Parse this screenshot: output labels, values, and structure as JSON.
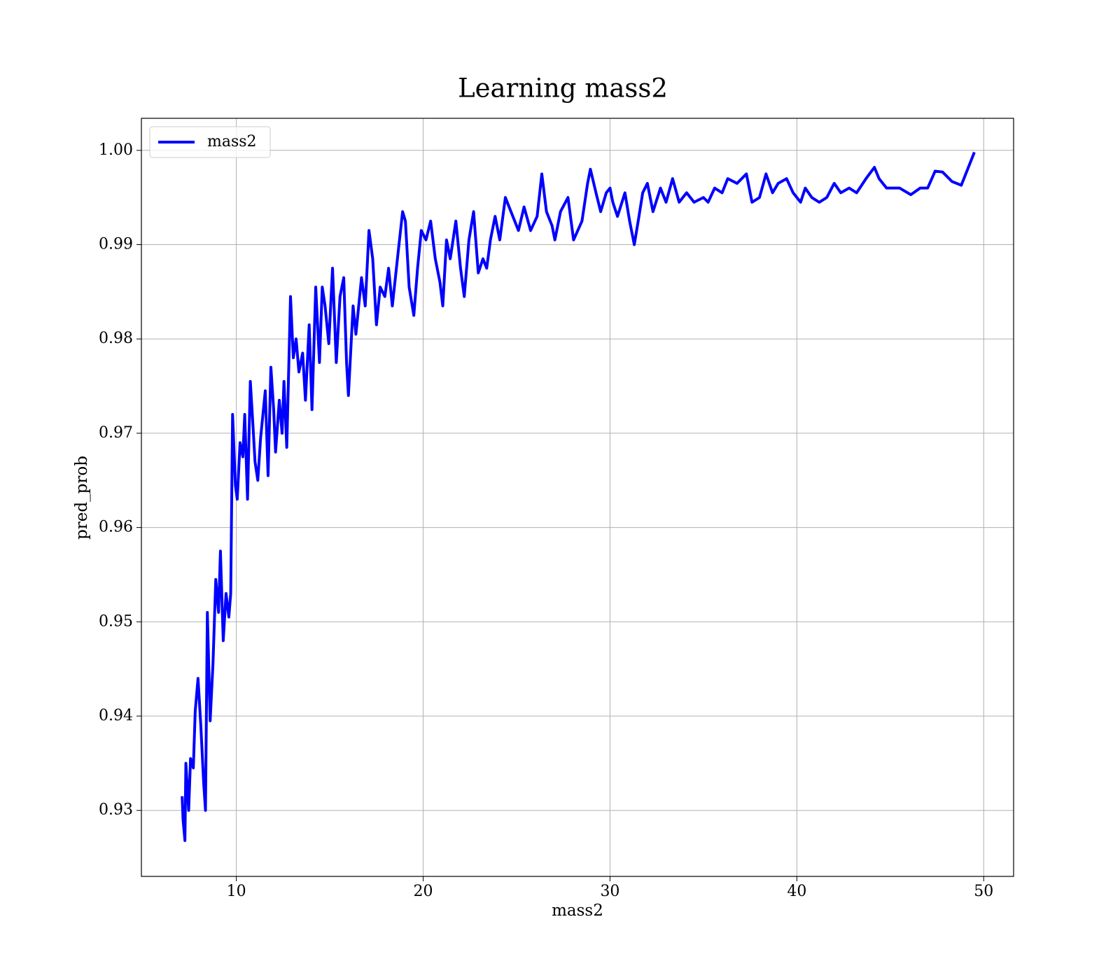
{
  "chart_data": {
    "type": "line",
    "title": "Learning mass2",
    "xlabel": "mass2",
    "ylabel": "pred_prob",
    "x": [
      7.1,
      7.15,
      7.25,
      7.3,
      7.45,
      7.55,
      7.7,
      7.8,
      7.95,
      8.1,
      8.25,
      8.35,
      8.45,
      8.6,
      8.75,
      8.9,
      9.05,
      9.15,
      9.3,
      9.45,
      9.6,
      9.7,
      9.8,
      9.95,
      10.05,
      10.2,
      10.35,
      10.45,
      10.6,
      10.75,
      10.9,
      11.0,
      11.15,
      11.3,
      11.55,
      11.7,
      11.85,
      12.0,
      12.1,
      12.3,
      12.45,
      12.55,
      12.7,
      12.9,
      13.05,
      13.2,
      13.35,
      13.55,
      13.7,
      13.9,
      14.05,
      14.25,
      14.45,
      14.6,
      14.75,
      14.95,
      15.15,
      15.35,
      15.55,
      15.75,
      15.9,
      16.0,
      16.25,
      16.4,
      16.7,
      16.9,
      17.1,
      17.3,
      17.5,
      17.7,
      17.95,
      18.15,
      18.35,
      18.65,
      18.9,
      19.05,
      19.25,
      19.5,
      19.7,
      19.9,
      20.15,
      20.4,
      20.65,
      20.9,
      21.05,
      21.25,
      21.45,
      21.75,
      22.0,
      22.2,
      22.45,
      22.7,
      22.95,
      23.2,
      23.4,
      23.6,
      23.85,
      24.1,
      24.4,
      24.8,
      25.1,
      25.4,
      25.75,
      26.1,
      26.35,
      26.6,
      26.9,
      27.05,
      27.35,
      27.75,
      28.05,
      28.5,
      28.8,
      28.95,
      29.25,
      29.5,
      29.8,
      30.0,
      30.15,
      30.4,
      30.8,
      31.05,
      31.3,
      31.55,
      31.75,
      32.0,
      32.3,
      32.7,
      33.0,
      33.35,
      33.7,
      34.1,
      34.5,
      35.0,
      35.25,
      35.6,
      36.0,
      36.3,
      36.8,
      37.3,
      37.6,
      38.0,
      38.35,
      38.7,
      39.0,
      39.45,
      39.8,
      40.2,
      40.45,
      40.8,
      41.2,
      41.6,
      42.0,
      42.35,
      42.8,
      43.2,
      43.7,
      44.15,
      44.4,
      44.8,
      45.5,
      46.1,
      46.6,
      47.0,
      47.4,
      47.8,
      48.3,
      48.8,
      49.5
    ],
    "series": [
      {
        "name": "mass2",
        "color": "#0000ff",
        "values": [
          0.9315,
          0.929,
          0.9268,
          0.935,
          0.93,
          0.9355,
          0.9345,
          0.9405,
          0.944,
          0.939,
          0.933,
          0.93,
          0.951,
          0.9395,
          0.9455,
          0.9545,
          0.951,
          0.9575,
          0.948,
          0.953,
          0.9505,
          0.953,
          0.972,
          0.9645,
          0.963,
          0.969,
          0.9675,
          0.972,
          0.963,
          0.9755,
          0.9705,
          0.967,
          0.965,
          0.9695,
          0.9745,
          0.9655,
          0.977,
          0.9725,
          0.968,
          0.9735,
          0.97,
          0.9755,
          0.9685,
          0.9845,
          0.978,
          0.98,
          0.9765,
          0.9785,
          0.9735,
          0.9815,
          0.9725,
          0.9855,
          0.9775,
          0.9855,
          0.9835,
          0.9795,
          0.9875,
          0.9775,
          0.9845,
          0.9865,
          0.9775,
          0.974,
          0.9835,
          0.9805,
          0.9865,
          0.9835,
          0.9915,
          0.9885,
          0.9815,
          0.9855,
          0.9845,
          0.9875,
          0.9835,
          0.989,
          0.9935,
          0.9925,
          0.9855,
          0.9825,
          0.9875,
          0.9915,
          0.9905,
          0.9925,
          0.9885,
          0.986,
          0.9835,
          0.9905,
          0.9885,
          0.9925,
          0.9875,
          0.9845,
          0.9905,
          0.9935,
          0.987,
          0.9885,
          0.9875,
          0.9905,
          0.993,
          0.9905,
          0.995,
          0.993,
          0.9915,
          0.994,
          0.9915,
          0.993,
          0.9975,
          0.9935,
          0.992,
          0.9905,
          0.9935,
          0.995,
          0.9905,
          0.9925,
          0.9965,
          0.998,
          0.9955,
          0.9935,
          0.9955,
          0.996,
          0.9945,
          0.993,
          0.9955,
          0.9925,
          0.99,
          0.993,
          0.9955,
          0.9965,
          0.9935,
          0.996,
          0.9945,
          0.997,
          0.9945,
          0.9955,
          0.9945,
          0.995,
          0.9945,
          0.996,
          0.9955,
          0.997,
          0.9965,
          0.9975,
          0.9945,
          0.995,
          0.9975,
          0.9955,
          0.9965,
          0.997,
          0.9955,
          0.9945,
          0.996,
          0.995,
          0.9945,
          0.995,
          0.9965,
          0.9955,
          0.996,
          0.9955,
          0.997,
          0.9982,
          0.997,
          0.996,
          0.996,
          0.9953,
          0.996,
          0.996,
          0.9978,
          0.9977,
          0.9967,
          0.9963,
          0.9998
        ]
      }
    ],
    "xlim": [
      4.92,
      51.6
    ],
    "xticks": [
      10,
      20,
      30,
      40,
      50
    ],
    "ylim": [
      0.923,
      1.0034
    ],
    "yticks": [
      0.93,
      0.94,
      0.95,
      0.96,
      0.97,
      0.98,
      0.99,
      {
        "value": 1,
        "label": "1.00"
      }
    ],
    "grid": true,
    "legend": "upper-left"
  }
}
